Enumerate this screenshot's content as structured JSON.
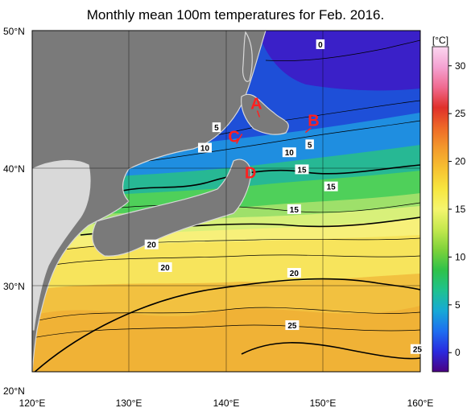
{
  "title": "Monthly mean 100m temperatures for Feb. 2016.",
  "axes": {
    "lat_labels": [
      "50°N",
      "40°N",
      "30°N",
      "20°N"
    ],
    "lon_labels": [
      "120°E",
      "130°E",
      "140°E",
      "150°E",
      "160°E"
    ],
    "lat_values": [
      50,
      40,
      30,
      20
    ],
    "lon_values": [
      120,
      130,
      140,
      150,
      160
    ],
    "lat_range": [
      20,
      50
    ],
    "lon_range": [
      120,
      160
    ],
    "grid": true
  },
  "colorbar": {
    "unit": "[°C]",
    "ticks": [
      "30",
      "25",
      "20",
      "15",
      "10",
      "5",
      "0"
    ],
    "tick_values": [
      30,
      25,
      20,
      15,
      10,
      5,
      0
    ],
    "range": [
      -2,
      32
    ],
    "colors": [
      "#4b0082",
      "#2a2adf",
      "#1e6ef0",
      "#17a9d6",
      "#1fc28f",
      "#2fc24a",
      "#7ed23a",
      "#c4e84e",
      "#f5f56e",
      "#f7e640",
      "#f7c131",
      "#f39a2c",
      "#ee6a27",
      "#e0302a",
      "#f06a90",
      "#f4a3d2",
      "#fbd6f0"
    ]
  },
  "isotherm_labels": [
    {
      "text": "0",
      "lon": 149.7,
      "lat": 48.8
    },
    {
      "text": "5",
      "lon": 139.0,
      "lat": 41.5
    },
    {
      "text": "5",
      "lon": 148.6,
      "lat": 40.0
    },
    {
      "text": "10",
      "lon": 137.8,
      "lat": 39.7
    },
    {
      "text": "10",
      "lon": 146.5,
      "lat": 39.3
    },
    {
      "text": "15",
      "lon": 147.8,
      "lat": 37.8
    },
    {
      "text": "15",
      "lon": 150.8,
      "lat": 36.3
    },
    {
      "text": "15",
      "lon": 147.0,
      "lat": 34.3
    },
    {
      "text": "20",
      "lon": 132.3,
      "lat": 31.2
    },
    {
      "text": "20",
      "lon": 133.7,
      "lat": 29.2
    },
    {
      "text": "20",
      "lon": 147.0,
      "lat": 28.7
    },
    {
      "text": "25",
      "lon": 146.8,
      "lat": 24.1
    },
    {
      "text": "25",
      "lon": 159.7,
      "lat": 22.0
    }
  ],
  "points": [
    {
      "label": "A",
      "lon": 143.1,
      "lat": 43.1
    },
    {
      "label": "B",
      "lon": 149.0,
      "lat": 41.6
    },
    {
      "label": "C",
      "lon": 140.8,
      "lat": 40.2
    },
    {
      "label": "D",
      "lon": 142.5,
      "lat": 37.0
    }
  ],
  "colors": {
    "land": "#7a7a7a",
    "land_outline": "#d8d8d8",
    "marker": "#ff2020"
  }
}
